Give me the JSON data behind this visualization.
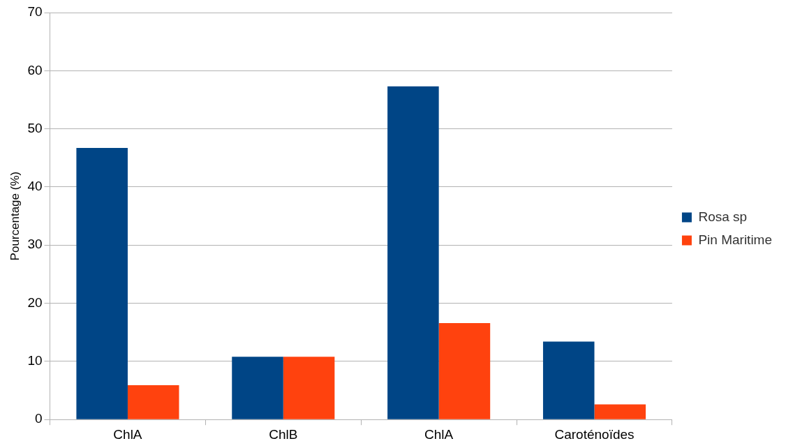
{
  "chart_data": {
    "type": "bar",
    "ylabel": "Pourcentage (%)",
    "categories": [
      "ChlA",
      "ChlB",
      "ChlA",
      "Caroténoïdes"
    ],
    "series": [
      {
        "name": "Rosa sp",
        "color": "#004586",
        "values": [
          46.7,
          10.8,
          57.3,
          13.4
        ]
      },
      {
        "name": "Pin Maritime",
        "color": "#ff420e",
        "values": [
          5.9,
          10.8,
          16.6,
          2.6
        ]
      }
    ],
    "ylim": [
      0,
      70
    ],
    "yticks": [
      0,
      10,
      20,
      30,
      40,
      50,
      60,
      70
    ],
    "grid": "y",
    "legend": "right"
  }
}
